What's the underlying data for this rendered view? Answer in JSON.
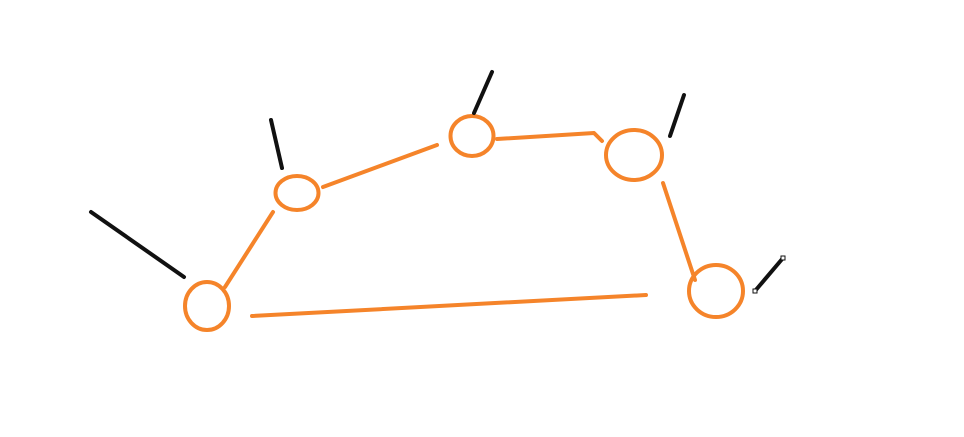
{
  "colors": {
    "background": "#ffffff",
    "node": "#f5842a",
    "edge": "#f5842a",
    "pointer": "#111111",
    "handle_fill": "#ffffff",
    "handle_stroke": "#111111"
  },
  "diagram": {
    "nodes": [
      {
        "id": "node-1"
      },
      {
        "id": "node-2"
      },
      {
        "id": "node-3"
      },
      {
        "id": "node-4"
      },
      {
        "id": "node-5"
      }
    ],
    "edges": [
      {
        "from": "node-1",
        "to": "node-2"
      },
      {
        "from": "node-2",
        "to": "node-3"
      },
      {
        "from": "node-3",
        "to": "node-4"
      },
      {
        "from": "node-4",
        "to": "node-5"
      },
      {
        "from": "node-5",
        "to": "node-1"
      }
    ],
    "pointers": [
      {
        "node": "node-1"
      },
      {
        "node": "node-2"
      },
      {
        "node": "node-3"
      },
      {
        "node": "node-4"
      },
      {
        "node": "node-5",
        "selected": true
      }
    ]
  }
}
